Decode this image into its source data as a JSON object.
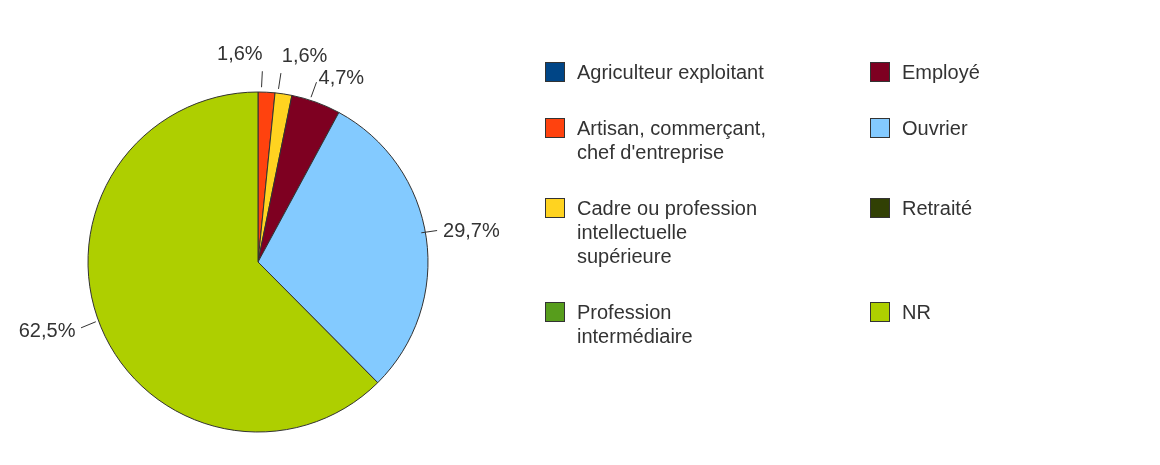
{
  "chart_data": {
    "type": "pie",
    "categories": [
      "Agriculteur exploitant",
      "Artisan, commerçant, chef d'entreprise",
      "Cadre ou profession intellectuelle supérieure",
      "Profession intermédiaire",
      "Employé",
      "Ouvrier",
      "Retraité",
      "NR"
    ],
    "values": [
      0,
      1.6,
      1.6,
      0,
      4.7,
      29.7,
      0,
      62.5
    ],
    "value_labels": [
      null,
      "1,6%",
      "1,6%",
      null,
      "4,7%",
      "29,7%",
      null,
      "62,5%"
    ],
    "colors": [
      "#004586",
      "#ff420e",
      "#ffd320",
      "#579d1c",
      "#7e0021",
      "#83caff",
      "#314004",
      "#aecf00"
    ],
    "legend": "right"
  }
}
